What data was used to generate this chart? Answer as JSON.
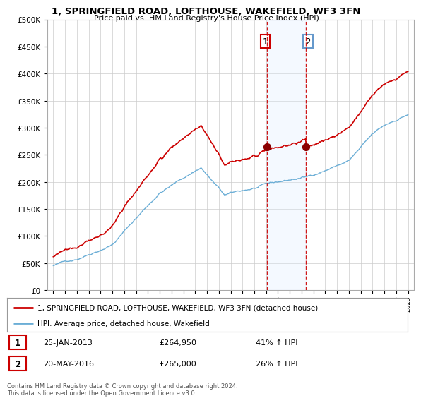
{
  "title": "1, SPRINGFIELD ROAD, LOFTHOUSE, WAKEFIELD, WF3 3FN",
  "subtitle": "Price paid vs. HM Land Registry's House Price Index (HPI)",
  "legend_line1": "1, SPRINGFIELD ROAD, LOFTHOUSE, WAKEFIELD, WF3 3FN (detached house)",
  "legend_line2": "HPI: Average price, detached house, Wakefield",
  "sale1_date": "25-JAN-2013",
  "sale1_price": 264950,
  "sale1_label": "41% ↑ HPI",
  "sale2_date": "20-MAY-2016",
  "sale2_price": 265000,
  "sale2_label": "26% ↑ HPI",
  "footer": "Contains HM Land Registry data © Crown copyright and database right 2024.\nThis data is licensed under the Open Government Licence v3.0.",
  "hpi_color": "#6baed6",
  "price_color": "#cc0000",
  "sale_marker_color": "#8b0000",
  "vline_color": "#cc0000",
  "vspan_color": "#ddeeff",
  "ylim": [
    0,
    500000
  ],
  "yticks": [
    0,
    50000,
    100000,
    150000,
    200000,
    250000,
    300000,
    350000,
    400000,
    450000,
    500000
  ],
  "background_color": "#ffffff",
  "grid_color": "#cccccc",
  "sale1_year": 2013.07,
  "sale2_year": 2016.38
}
